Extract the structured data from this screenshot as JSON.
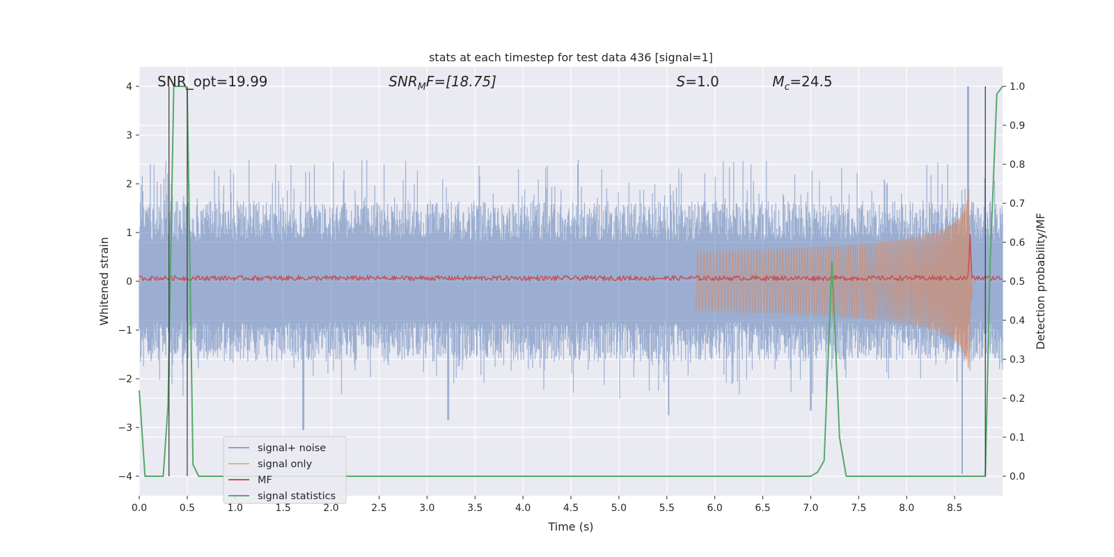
{
  "chart_data": {
    "type": "line",
    "title": "stats at each timestep for test data 436 [signal=1]",
    "xlabel": "Time (s)",
    "ylabel": "Whitened strain",
    "ylabel_right": "Detection probability/MF",
    "xlim": [
      0.0,
      9.0
    ],
    "ylim": [
      -4.4,
      4.4
    ],
    "ylim_right": [
      -0.05,
      1.05
    ],
    "xticks": [
      0.0,
      0.5,
      1.0,
      1.5,
      2.0,
      2.5,
      3.0,
      3.5,
      4.0,
      4.5,
      5.0,
      5.5,
      6.0,
      6.5,
      7.0,
      7.5,
      8.0,
      8.5
    ],
    "xtick_labels": [
      "0.0",
      "0.5",
      "1.0",
      "1.5",
      "2.0",
      "2.5",
      "3.0",
      "3.5",
      "4.0",
      "4.5",
      "5.0",
      "5.5",
      "6.0",
      "6.5",
      "7.0",
      "7.5",
      "8.0",
      "8.5"
    ],
    "yticks": [
      -4,
      -3,
      -2,
      -1,
      0,
      1,
      2,
      3,
      4
    ],
    "ytick_labels": [
      "−4",
      "−3",
      "−2",
      "−1",
      "0",
      "1",
      "2",
      "3",
      "4"
    ],
    "yticks_right": [
      0.0,
      0.1,
      0.2,
      0.3,
      0.4,
      0.5,
      0.6,
      0.7,
      0.8,
      0.9,
      1.0
    ],
    "ytick_labels_right": [
      "0.0",
      "0.1",
      "0.2",
      "0.3",
      "0.4",
      "0.5",
      "0.6",
      "0.7",
      "0.8",
      "0.9",
      "1.0"
    ],
    "grid": true,
    "legend_position": "bottom-left",
    "annotations": [
      {
        "text": "SNR_opt=19.99",
        "x": 0.19,
        "y": 4.1
      },
      {
        "text": "SNRMF=[18.75]",
        "prefix": "SNR",
        "sub": "M",
        "suffix": "F=[18.75]",
        "x": 2.6,
        "y": 4.1
      },
      {
        "text": "S=1.0",
        "prefix": "S",
        "sub": "",
        "suffix": "=1.0",
        "x": 5.6,
        "y": 4.1
      },
      {
        "text": "Mc=24.5",
        "prefix": "M",
        "sub": "c",
        "suffix": "=24.5",
        "x": 6.6,
        "y": 4.1
      }
    ],
    "vlines": [
      {
        "x": 0.31,
        "y0": -4.0,
        "y1": 4.0
      },
      {
        "x": 0.5,
        "y0": -4.0,
        "y1": 4.0
      },
      {
        "x": 8.82,
        "y0": -4.0,
        "y1": 4.0
      }
    ],
    "series": [
      {
        "name": "signal+ noise",
        "color": "#4c72b0",
        "axis": "left",
        "kind": "noise",
        "x_range": [
          0.0,
          9.0
        ],
        "typical_amplitude": 1.5,
        "peak_amplitude": 2.5,
        "extreme_points": [
          {
            "x": 1.71,
            "y": -3.05
          },
          {
            "x": 3.22,
            "y": -2.85
          },
          {
            "x": 5.52,
            "y": -2.75
          },
          {
            "x": 7.0,
            "y": -2.65
          },
          {
            "x": 8.58,
            "y": -3.95
          },
          {
            "x": 8.64,
            "y": 4.0
          }
        ]
      },
      {
        "name": "signal only",
        "color": "#dd8452",
        "axis": "left",
        "kind": "chirp",
        "start_time": 5.8,
        "merger_time": 8.65,
        "peak_amplitude": 3.3,
        "end_time": 8.72
      },
      {
        "name": "MF",
        "color": "#c44e52",
        "axis": "right",
        "kind": "noisy-baseline",
        "baseline": 0.508,
        "jitter": 0.006,
        "peak": {
          "x": 8.66,
          "y": 0.62
        }
      },
      {
        "name": "signal statistics",
        "color": "#55a868",
        "axis": "right",
        "kind": "line",
        "x": [
          0.0,
          0.06,
          0.25,
          0.3,
          0.36,
          0.4,
          0.48,
          0.5,
          0.56,
          0.62,
          7.0,
          7.07,
          7.14,
          7.22,
          7.3,
          7.37,
          7.43,
          8.82,
          8.87,
          8.94,
          9.0
        ],
        "y": [
          0.22,
          0.0,
          0.0,
          0.18,
          1.0,
          1.0,
          1.0,
          0.99,
          0.03,
          0.0,
          0.0,
          0.01,
          0.04,
          0.55,
          0.1,
          0.0,
          0.0,
          0.0,
          0.55,
          0.98,
          1.0
        ]
      }
    ]
  }
}
